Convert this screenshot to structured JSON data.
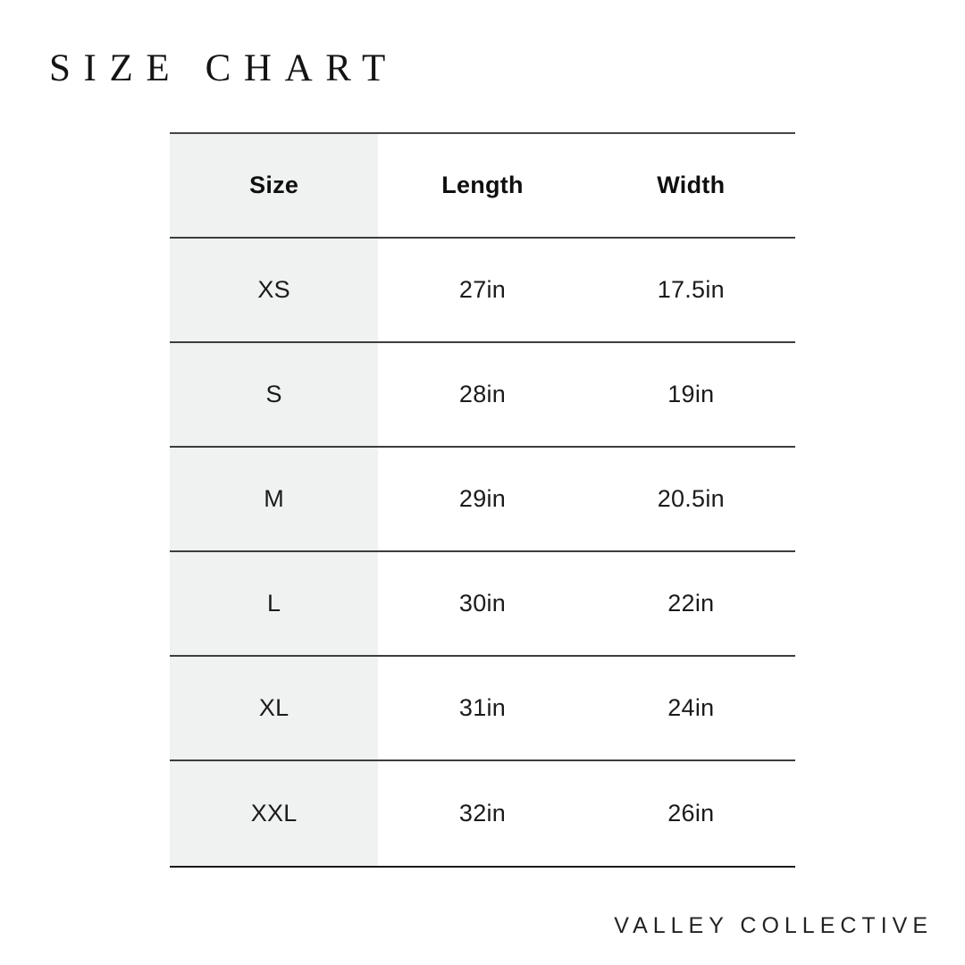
{
  "page": {
    "title": "SIZE CHART",
    "brand": "VALLEY COLLECTIVE"
  },
  "colors": {
    "background": "#ffffff",
    "shaded_column": "#f0f1f1",
    "rule_line": "#3d3d3d",
    "text": "#1b1b1b"
  },
  "chart_data": {
    "type": "table",
    "title": "SIZE CHART",
    "columns": [
      "Size",
      "Length",
      "Width"
    ],
    "rows": [
      [
        "XS",
        "27in",
        "17.5in"
      ],
      [
        "S",
        "28in",
        "19in"
      ],
      [
        "M",
        "29in",
        "20.5in"
      ],
      [
        "L",
        "30in",
        "22in"
      ],
      [
        "XL",
        "31in",
        "24in"
      ],
      [
        "XXL",
        "32in",
        "26in"
      ]
    ],
    "units": "inches",
    "layout_hints": {
      "first_column_shaded": true,
      "horizontal_rules_only": true,
      "columns_equal_width": true
    }
  }
}
